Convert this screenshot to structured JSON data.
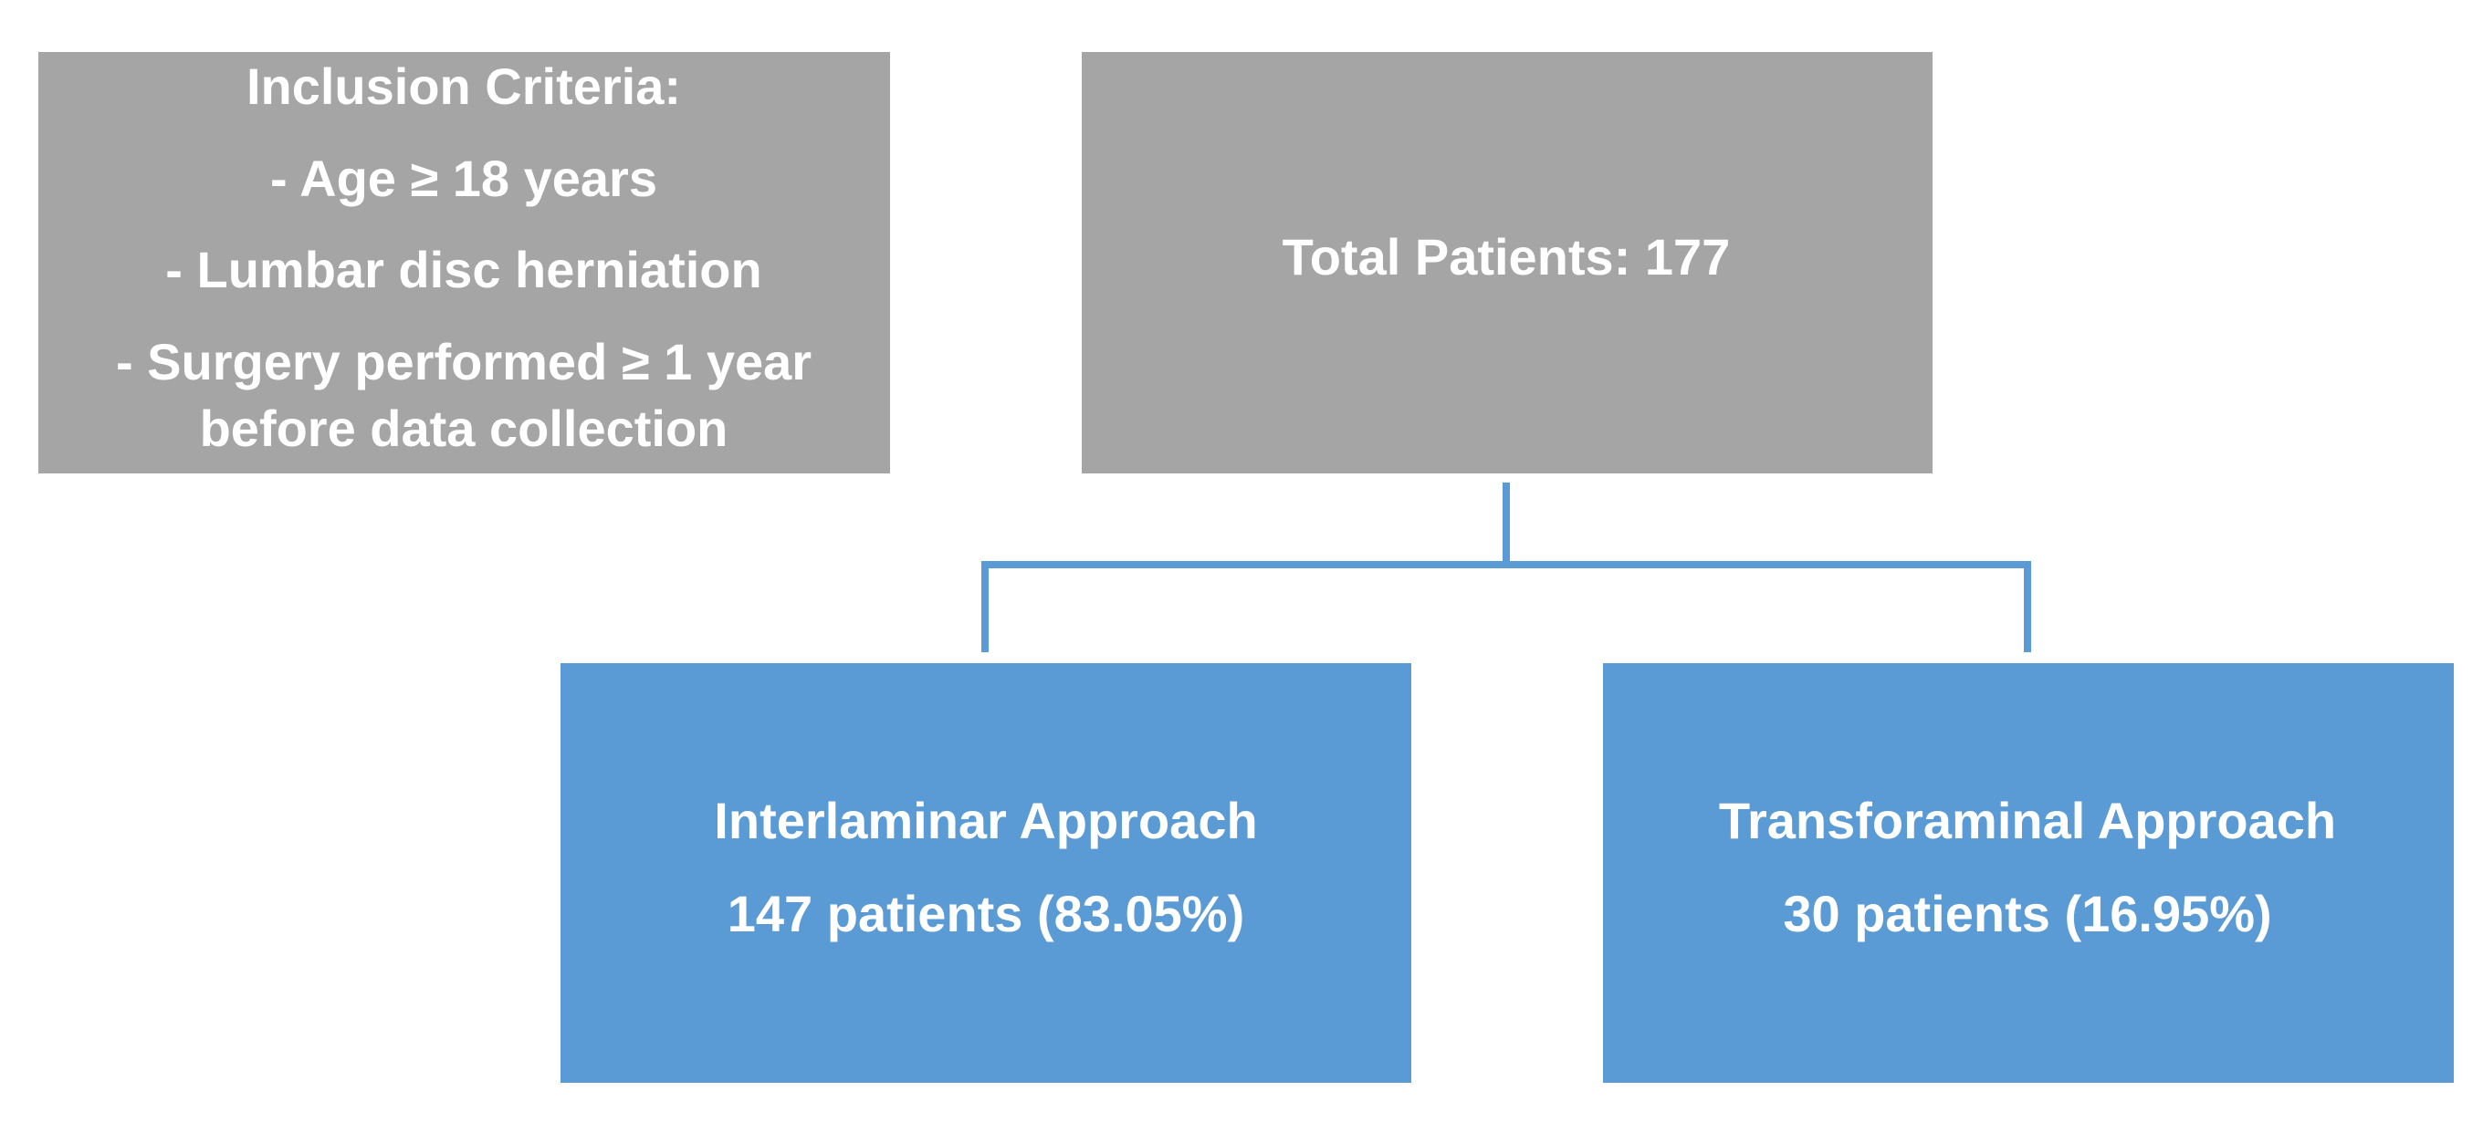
{
  "nodes": [
    {
      "label": "Inclusion Criteria:",
      "lines": [
        "- Age ≥ 18 years",
        "- Lumbar disc herniation",
        "- Surgery performed ≥ 1 year",
        "before data collection"
      ]
    },
    {
      "label": "Total Patients: 177"
    },
    {
      "label": "Interlaminar Approach",
      "lines": [
        "147 patients (83.05%)"
      ]
    },
    {
      "label": "Transforaminal Approach",
      "lines": [
        "30 patients (16.95%)"
      ]
    }
  ]
}
